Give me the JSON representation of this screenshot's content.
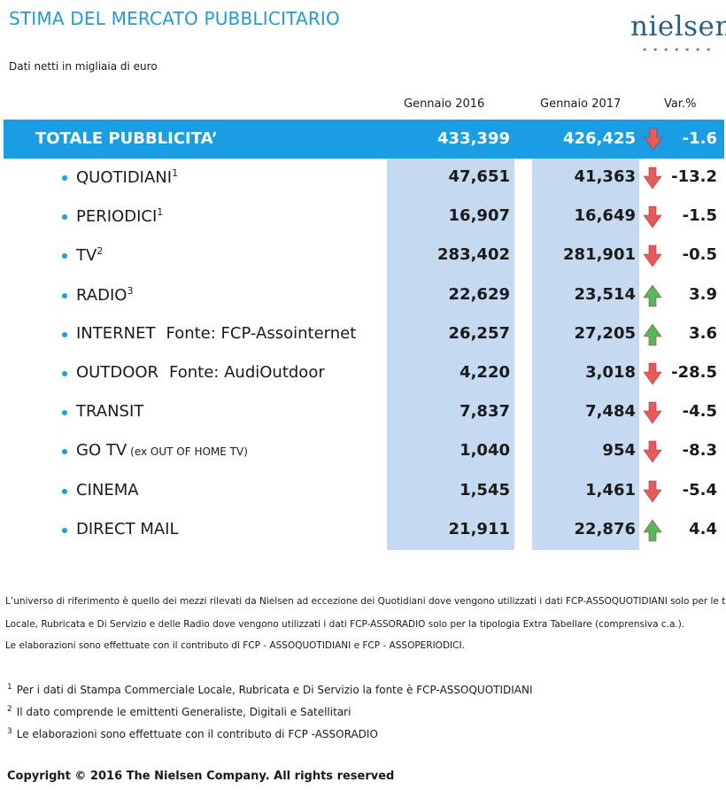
{
  "header": {
    "title": "STIMA DEL MERCATO PUBBLICITARIO",
    "logo_text": "nielsen",
    "subtitle": "Dati netti in migliaia di euro"
  },
  "columns": {
    "y2016": "Gennaio 2016",
    "y2017": "Gennaio 2017",
    "var": "Var.%"
  },
  "total": {
    "label": "TOTALE PUBBLICITA’",
    "v2016": "433,399",
    "v2017": "426,425",
    "var": "-1.6",
    "trend": "down"
  },
  "rows": [
    {
      "label": "QUOTIDIANI",
      "sup": "1",
      "source": "",
      "note": "",
      "v2016": "47,651",
      "v2017": "41,363",
      "var": "-13.2",
      "trend": "down"
    },
    {
      "label": "PERIODICI",
      "sup": "1",
      "source": "",
      "note": "",
      "v2016": "16,907",
      "v2017": "16,649",
      "var": "-1.5",
      "trend": "down"
    },
    {
      "label": "TV",
      "sup": "2",
      "source": "",
      "note": "",
      "v2016": "283,402",
      "v2017": "281,901",
      "var": "-0.5",
      "trend": "down"
    },
    {
      "label": "RADIO",
      "sup": "3",
      "source": "",
      "note": "",
      "v2016": "22,629",
      "v2017": "23,514",
      "var": "3.9",
      "trend": "up"
    },
    {
      "label": "INTERNET",
      "sup": "",
      "source": "Fonte: FCP-Assointernet",
      "note": "",
      "v2016": "26,257",
      "v2017": "27,205",
      "var": "3.6",
      "trend": "up"
    },
    {
      "label": "OUTDOOR",
      "sup": "",
      "source": "Fonte: AudiOutdoor",
      "note": "",
      "v2016": "4,220",
      "v2017": "3,018",
      "var": "-28.5",
      "trend": "down"
    },
    {
      "label": "TRANSIT",
      "sup": "",
      "source": "",
      "note": "",
      "v2016": "7,837",
      "v2017": "7,484",
      "var": "-4.5",
      "trend": "down"
    },
    {
      "label": "GO TV",
      "sup": "",
      "source": "",
      "note": "(ex OUT OF HOME TV)",
      "v2016": "1,040",
      "v2017": "954",
      "var": "-8.3",
      "trend": "down"
    },
    {
      "label": "CINEMA",
      "sup": "",
      "source": "",
      "note": "",
      "v2016": "1,545",
      "v2017": "1,461",
      "var": "-5.4",
      "trend": "down"
    },
    {
      "label": "DIRECT MAIL",
      "sup": "",
      "source": "",
      "note": "",
      "v2016": "21,911",
      "v2017": "22,876",
      "var": "4.4",
      "trend": "up"
    }
  ],
  "notes": [
    "L’universo di riferimento è quello dei mezzi rilevati da Nielsen ad eccezione dei Quotidiani dove vengono utilizzati i dati FCP-ASSOQUOTIDIANI solo per le tipol",
    "Locale, Rubricata e Di Servizio e delle Radio dove vengono utilizzati i dati FCP-ASSORADIO solo per la tipologia Extra Tabellare (comprensiva c.a.).",
    "Le elaborazioni sono effettuate con il contributo di FCP - ASSOQUOTIDIANI e FCP - ASSOPERIODICI."
  ],
  "footnotes": [
    {
      "num": "1",
      "text": "Per i dati di Stampa Commerciale Locale, Rubricata e Di Servizio la fonte è  FCP-ASSOQUOTIDIANI"
    },
    {
      "num": "2",
      "text": "Il dato comprende le emittenti Generaliste, Digitali e Satellitari"
    },
    {
      "num": "3",
      "text": "Le elaborazioni sono effettuate con il contributo di FCP -ASSORADIO"
    }
  ],
  "copyright": "Copyright © 2016 The Nielsen Company. All rights reserved",
  "colors": {
    "accent_blue": "#1a9de3",
    "column_fill": "#c5d9f1",
    "arrow_down": "#e8595a",
    "arrow_up": "#55b85c"
  },
  "icons": {
    "down": "arrow-down-icon",
    "up": "arrow-up-icon"
  }
}
